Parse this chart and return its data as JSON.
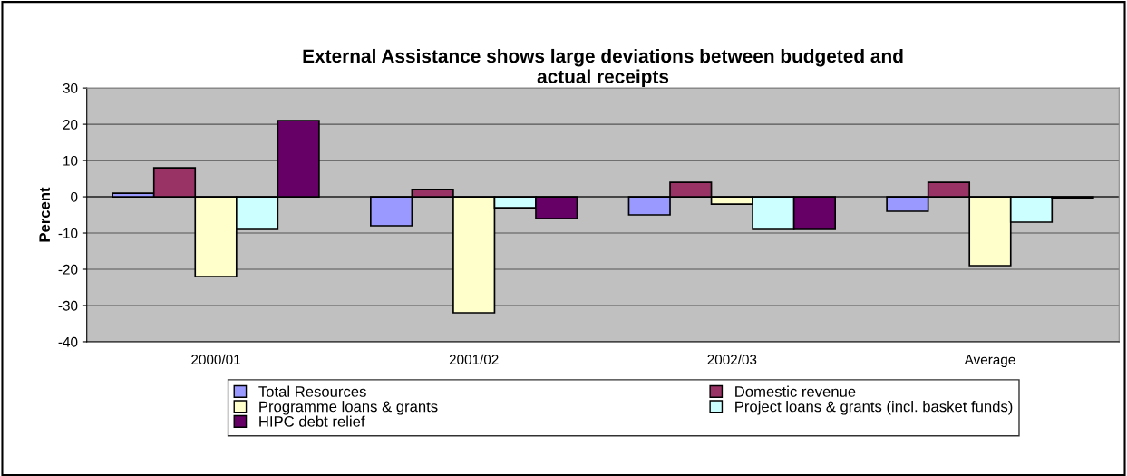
{
  "chart_data": {
    "type": "bar",
    "title": "External Assistance shows large deviations between budgeted and\nactual receipts",
    "ylabel": "Percent",
    "categories": [
      "2000/01",
      "2001/02",
      "2002/03",
      "Average"
    ],
    "series": [
      {
        "name": "Total Resources",
        "color": "#9999ff",
        "values": [
          1,
          -8,
          -5,
          -4
        ]
      },
      {
        "name": "Domestic revenue",
        "color": "#993366",
        "values": [
          8,
          2,
          4,
          4
        ]
      },
      {
        "name": "Programme loans & grants",
        "color": "#ffffcc",
        "values": [
          -22,
          -32,
          -2,
          -19
        ]
      },
      {
        "name": "Project loans & grants (incl. basket funds)",
        "color": "#ccffff",
        "values": [
          -9,
          -3,
          -9,
          -7
        ]
      },
      {
        "name": "HIPC debt relief",
        "color": "#660066",
        "values": [
          21,
          -6,
          -9,
          -0.3
        ]
      }
    ],
    "ylim": [
      -40,
      30
    ],
    "yticks": [
      -40,
      -30,
      -20,
      -10,
      0,
      10,
      20,
      30
    ],
    "grid": "y",
    "legend": "bottom"
  }
}
